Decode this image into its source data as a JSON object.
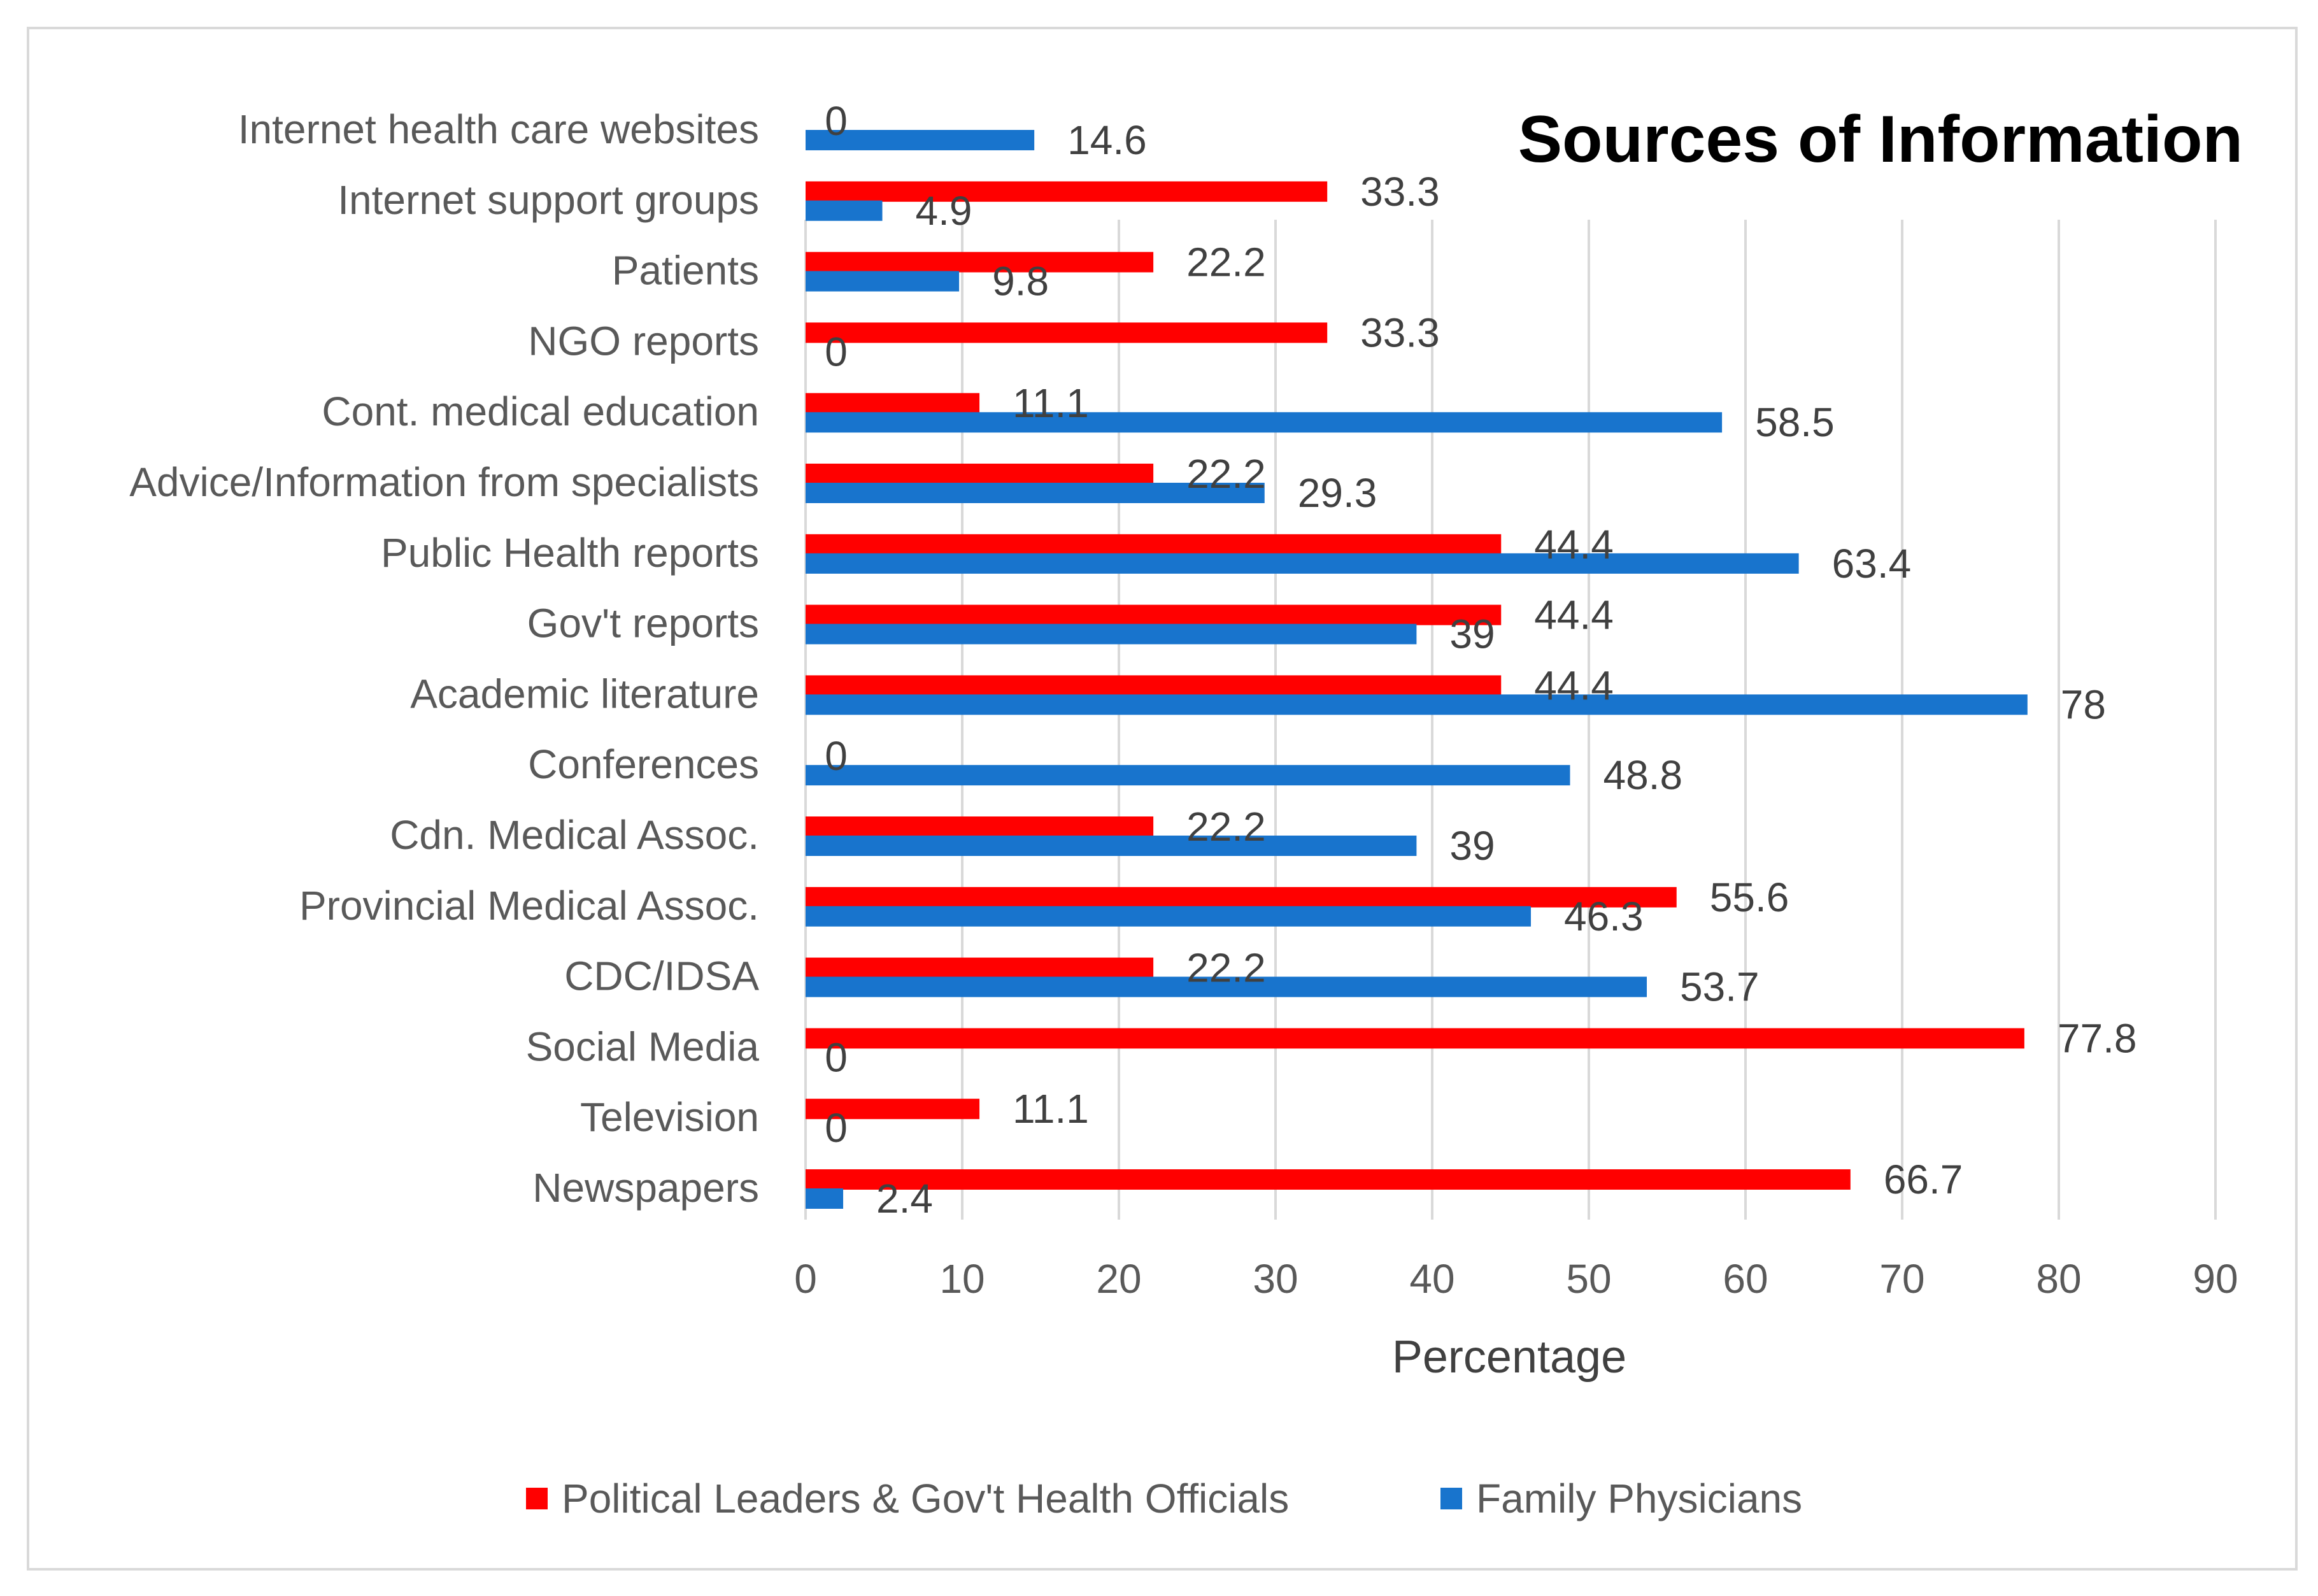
{
  "chart_data": {
    "type": "bar",
    "orientation": "horizontal",
    "title": "Sources of Information",
    "xlabel": "Percentage",
    "ylabel": "",
    "xlim": [
      0,
      90
    ],
    "xticks": [
      0,
      10,
      20,
      30,
      40,
      50,
      60,
      70,
      80,
      90
    ],
    "grid": true,
    "legend_position": "bottom",
    "categories": [
      "Internet health care websites",
      "Internet support groups",
      "Patients",
      "NGO reports",
      "Cont. medical education",
      "Advice/Information from specialists",
      "Public Health reports",
      "Gov't reports",
      "Academic literature",
      "Conferences",
      "Cdn. Medical Assoc.",
      "Provincial Medical Assoc.",
      "CDC/IDSA",
      "Social Media",
      "Television",
      "Newspapers"
    ],
    "series": [
      {
        "name": "Political Leaders & Gov't Health Officials",
        "color": "#ff0000",
        "values": [
          0,
          33.3,
          22.2,
          33.3,
          11.1,
          22.2,
          44.4,
          44.4,
          44.4,
          0,
          22.2,
          55.6,
          22.2,
          77.8,
          11.1,
          66.7
        ],
        "labels": [
          "0",
          "33.3",
          "22.2",
          "33.3",
          "11.1",
          "22.2",
          "44.4",
          "44.4",
          "44.4",
          "0",
          "22.2",
          "55.6",
          "22.2",
          "77.8",
          "11.1",
          "66.7"
        ]
      },
      {
        "name": "Family Physicians",
        "color": "#1874cd",
        "values": [
          14.6,
          4.9,
          9.8,
          0,
          58.5,
          29.3,
          63.4,
          39,
          78,
          48.8,
          39,
          46.3,
          53.7,
          0,
          0,
          2.4
        ],
        "labels": [
          "14.6",
          "4.9",
          "9.8",
          "0",
          "58.5",
          "29.3",
          "63.4",
          "39",
          "78",
          "48.8",
          "39",
          "46.3",
          "53.7",
          "0",
          "0",
          "2.4"
        ]
      }
    ]
  }
}
